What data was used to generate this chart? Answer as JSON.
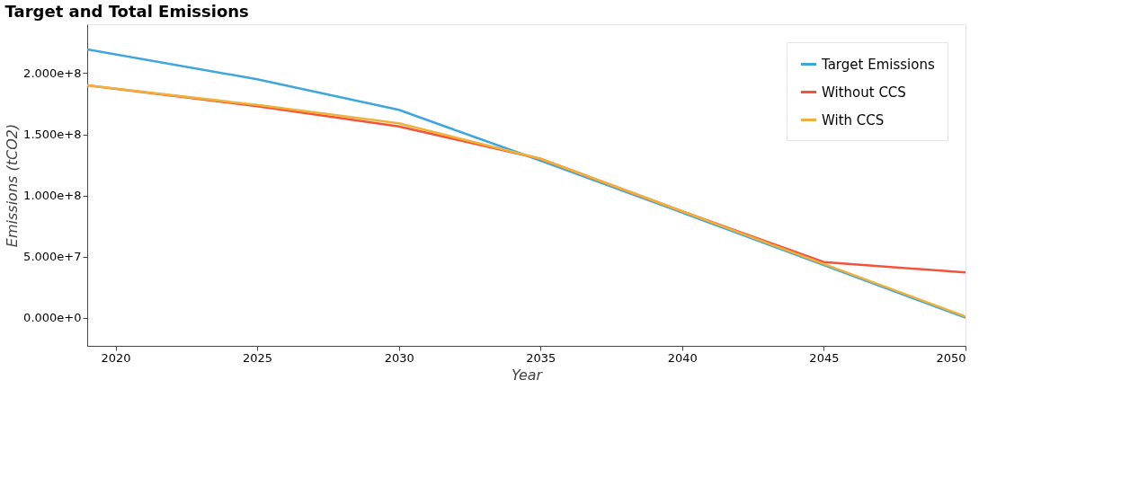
{
  "chart_data": {
    "type": "line",
    "title": "Target and Total Emissions",
    "xlabel": "Year",
    "ylabel": "Emissions (tCO2)",
    "x": [
      2019,
      2025,
      2030,
      2035,
      2040,
      2045,
      2050
    ],
    "series": [
      {
        "name": "Target Emissions",
        "color": "#3ea6dd",
        "values": [
          219500000,
          195000000,
          170000000,
          128500000,
          86000000,
          43000000,
          0
        ]
      },
      {
        "name": "Without CCS",
        "color": "#f5523a",
        "values": [
          190000000,
          173000000,
          156500000,
          130000000,
          87000000,
          45500000,
          37000000
        ]
      },
      {
        "name": "With CCS",
        "color": "#f0b13a",
        "values": [
          190000000,
          174000000,
          159000000,
          130000000,
          87000000,
          44000000,
          1000000
        ]
      }
    ],
    "xlim": [
      2019,
      2050
    ],
    "xticks": [
      2020,
      2025,
      2030,
      2035,
      2040,
      2045,
      2050
    ],
    "ylim": [
      -23000000,
      240000000
    ],
    "yticks": [
      {
        "value": 0,
        "label": "0.000e+0"
      },
      {
        "value": 50000000,
        "label": "5.000e+7"
      },
      {
        "value": 100000000,
        "label": "1.000e+8"
      },
      {
        "value": 150000000,
        "label": "1.500e+8"
      },
      {
        "value": 200000000,
        "label": "2.000e+8"
      }
    ],
    "grid": false,
    "legend": "top right",
    "marker": "none",
    "line_style": "solid"
  }
}
